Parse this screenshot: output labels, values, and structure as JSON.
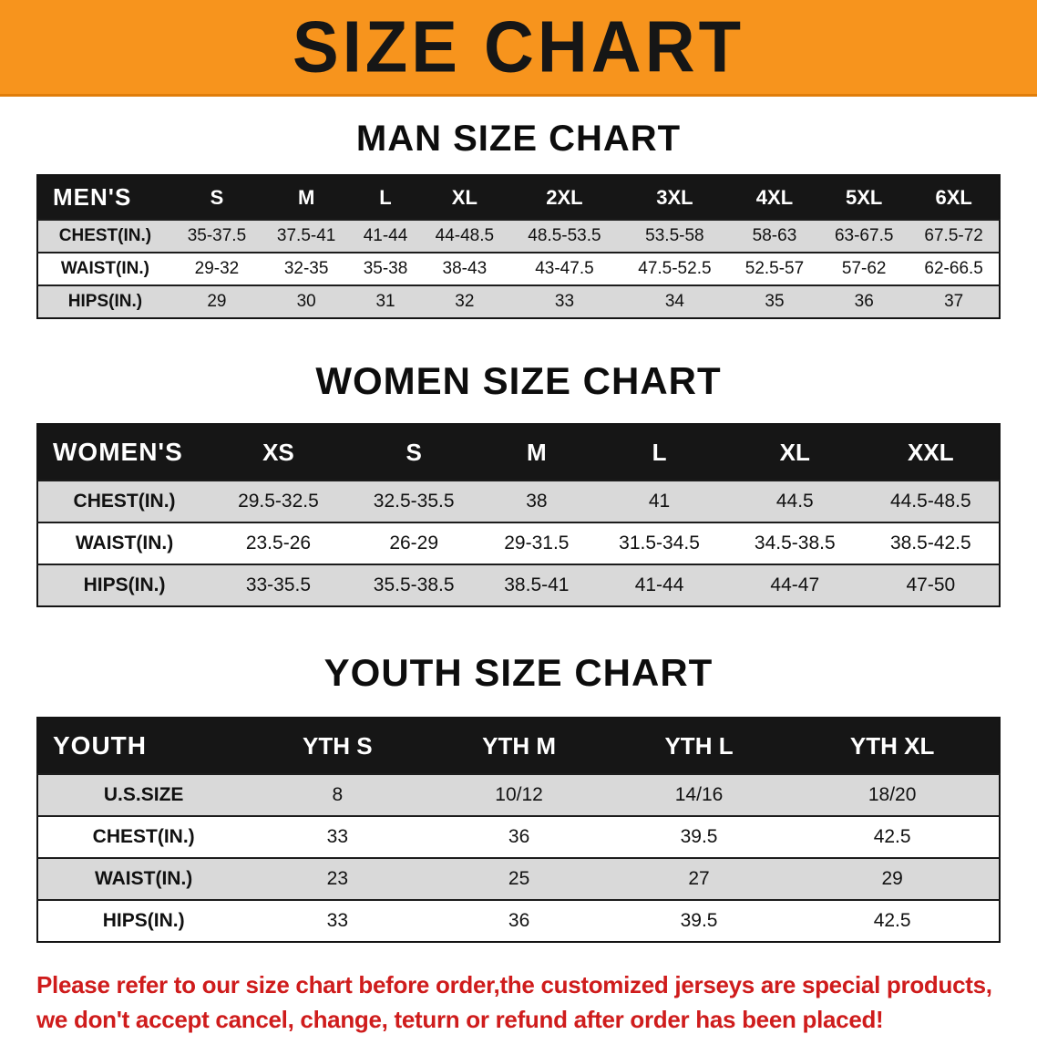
{
  "banner": {
    "title": "SIZE CHART",
    "bg_color": "#f7941d",
    "text_color": "#161616"
  },
  "sections": [
    {
      "key": "men",
      "heading": "MAN SIZE CHART",
      "header_label": "MEN'S",
      "columns": [
        "S",
        "M",
        "L",
        "XL",
        "2XL",
        "3XL",
        "4XL",
        "5XL",
        "6XL"
      ],
      "rows": [
        {
          "label": "CHEST(IN.)",
          "values": [
            "35-37.5",
            "37.5-41",
            "41-44",
            "44-48.5",
            "48.5-53.5",
            "53.5-58",
            "58-63",
            "63-67.5",
            "67.5-72"
          ]
        },
        {
          "label": "WAIST(IN.)",
          "values": [
            "29-32",
            "32-35",
            "35-38",
            "38-43",
            "43-47.5",
            "47.5-52.5",
            "52.5-57",
            "57-62",
            "62-66.5"
          ]
        },
        {
          "label": "HIPS(IN.)",
          "values": [
            "29",
            "30",
            "31",
            "32",
            "33",
            "34",
            "35",
            "36",
            "37"
          ]
        }
      ]
    },
    {
      "key": "women",
      "heading": "WOMEN SIZE CHART",
      "header_label": "WOMEN'S",
      "columns": [
        "XS",
        "S",
        "M",
        "L",
        "XL",
        "XXL"
      ],
      "rows": [
        {
          "label": "CHEST(IN.)",
          "values": [
            "29.5-32.5",
            "32.5-35.5",
            "38",
            "41",
            "44.5",
            "44.5-48.5"
          ]
        },
        {
          "label": "WAIST(IN.)",
          "values": [
            "23.5-26",
            "26-29",
            "29-31.5",
            "31.5-34.5",
            "34.5-38.5",
            "38.5-42.5"
          ]
        },
        {
          "label": "HIPS(IN.)",
          "values": [
            "33-35.5",
            "35.5-38.5",
            "38.5-41",
            "41-44",
            "44-47",
            "47-50"
          ]
        }
      ]
    },
    {
      "key": "youth",
      "heading": "YOUTH SIZE CHART",
      "header_label": "YOUTH",
      "columns": [
        "YTH S",
        "YTH M",
        "YTH L",
        "YTH XL"
      ],
      "rows": [
        {
          "label": "U.S.SIZE",
          "values": [
            "8",
            "10/12",
            "14/16",
            "18/20"
          ]
        },
        {
          "label": "CHEST(IN.)",
          "values": [
            "33",
            "36",
            "39.5",
            "42.5"
          ]
        },
        {
          "label": "WAIST(IN.)",
          "values": [
            "23",
            "25",
            "27",
            "29"
          ]
        },
        {
          "label": "HIPS(IN.)",
          "values": [
            "33",
            "36",
            "39.5",
            "42.5"
          ]
        }
      ]
    }
  ],
  "footer": {
    "line1": "Please refer to our size chart before order,the customized jerseys are special products,",
    "line2": "we don't accept cancel, change, teturn or refund after order has been placed!",
    "text_color": "#cf1c1c"
  },
  "colors": {
    "banner_orange": "#f7941d",
    "header_black": "#161616",
    "row_gray": "#d9d9d9",
    "footer_red": "#cf1c1c"
  }
}
